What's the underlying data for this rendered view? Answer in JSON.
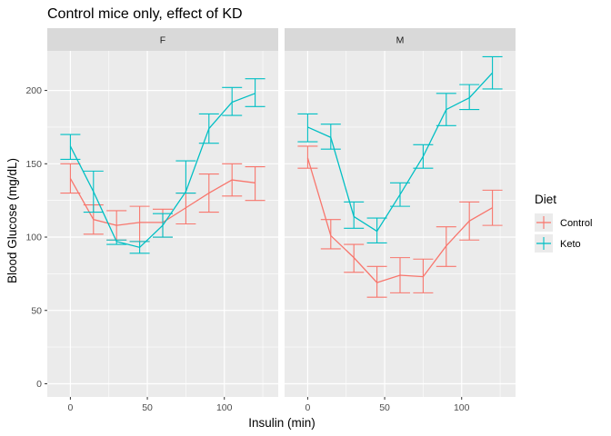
{
  "chart_data": {
    "type": "line",
    "title": "Control mice only, effect of KD",
    "xlabel": "Insulin (min)",
    "ylabel": "Blood Glucose (mg/dL)",
    "x_ticks": [
      0,
      50,
      100
    ],
    "y_ticks": [
      0,
      50,
      100,
      150,
      200
    ],
    "xlim": [
      -15,
      135
    ],
    "ylim": [
      -9,
      227
    ],
    "grid": true,
    "legend": {
      "title": "Diet",
      "position": "right",
      "entries": [
        {
          "name": "Control",
          "color": "#F8766D"
        },
        {
          "name": "Keto",
          "color": "#00BFC4"
        }
      ]
    },
    "x": [
      0,
      15,
      30,
      45,
      60,
      75,
      90,
      105,
      120
    ],
    "panels": [
      {
        "label": "F",
        "series": [
          {
            "name": "Control",
            "color": "#F8766D",
            "values": [
              140,
              112,
              108,
              110,
              110,
              120,
              130,
              139,
              137
            ],
            "lower": [
              130,
              102,
              98,
              97,
              100,
              109,
              117,
              128,
              125
            ],
            "upper": [
              150,
              122,
              118,
              121,
              119,
              130,
              143,
              150,
              148
            ]
          },
          {
            "name": "Keto",
            "color": "#00BFC4",
            "values": [
              162,
              131,
              97,
              93,
              108,
              131,
              174,
              192,
              198
            ],
            "lower": [
              153,
              117,
              95,
              89,
              100,
              130,
              164,
              183,
              189
            ],
            "upper": [
              170,
              145,
              98,
              97,
              116,
              152,
              184,
              202,
              208
            ]
          }
        ]
      },
      {
        "label": "M",
        "series": [
          {
            "name": "Control",
            "color": "#F8766D",
            "values": [
              154,
              101,
              86,
              69,
              74,
              73,
              94,
              111,
              120
            ],
            "lower": [
              147,
              92,
              76,
              59,
              62,
              62,
              80,
              98,
              108
            ],
            "upper": [
              162,
              112,
              95,
              80,
              86,
              85,
              107,
              124,
              132
            ]
          },
          {
            "name": "Keto",
            "color": "#00BFC4",
            "values": [
              175,
              168,
              114,
              104,
              129,
              155,
              187,
              195,
              212
            ],
            "lower": [
              165,
              160,
              106,
              96,
              121,
              147,
              176,
              187,
              201
            ],
            "upper": [
              184,
              177,
              124,
              113,
              137,
              163,
              198,
              204,
              223
            ]
          }
        ]
      }
    ]
  }
}
